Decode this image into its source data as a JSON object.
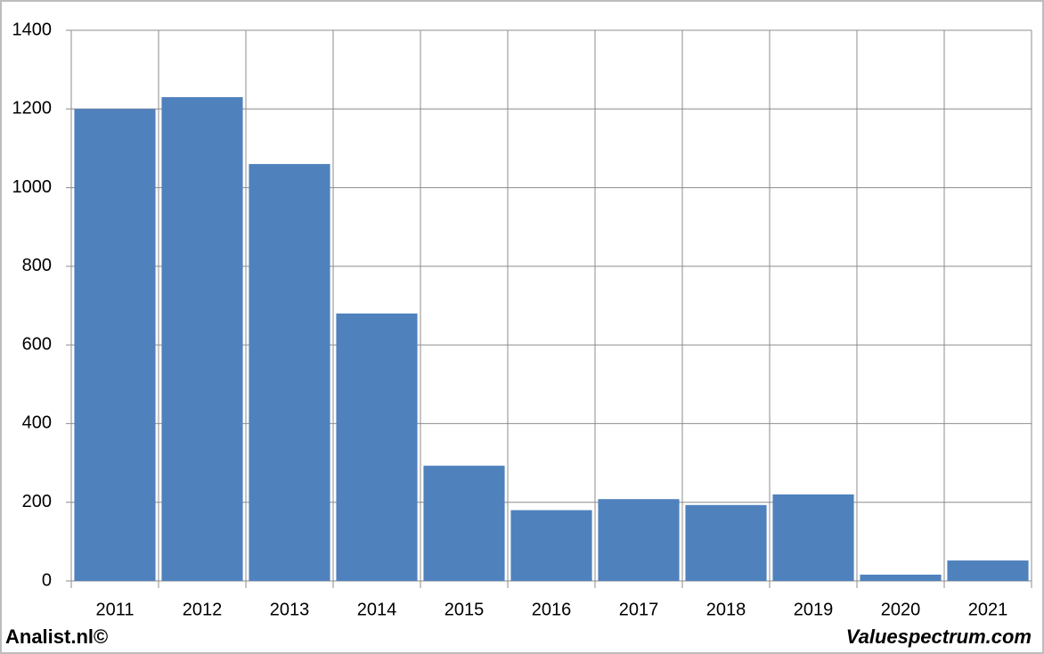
{
  "chart_data": {
    "type": "bar",
    "categories": [
      "2011",
      "2012",
      "2013",
      "2014",
      "2015",
      "2016",
      "2017",
      "2018",
      "2019",
      "2020",
      "2021"
    ],
    "values": [
      1200,
      1230,
      1060,
      680,
      293,
      180,
      208,
      193,
      220,
      16,
      52
    ],
    "color": "#4f81bd",
    "ylim": [
      0,
      1400
    ],
    "yticks": [
      0,
      200,
      400,
      600,
      800,
      1000,
      1200,
      1400
    ],
    "grid": true,
    "annotations": [
      "Analist.nl©",
      "Valuespectrum.com"
    ]
  }
}
